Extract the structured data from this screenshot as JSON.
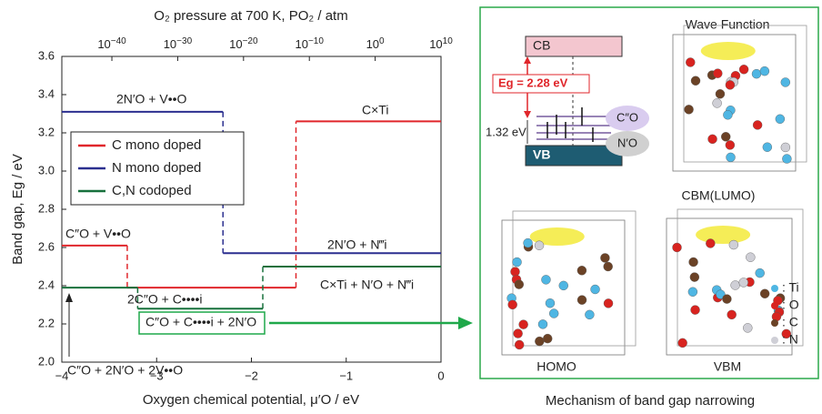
{
  "chart_data": {
    "type": "step",
    "title": "O₂ pressure at 700 K, PO₂ / atm",
    "x_label": "Oxygen chemical potential, μ′O / eV",
    "y_label": "Band gap, Eg / eV",
    "xlim": [
      -4,
      0
    ],
    "xticks": [
      {
        "value": -4,
        "label": "−4"
      },
      {
        "value": -3,
        "label": "−3"
      },
      {
        "value": -2,
        "label": "−2"
      },
      {
        "value": -1,
        "label": "−1"
      },
      0
    ],
    "ylim": [
      2.0,
      3.6
    ],
    "yticks": [
      {
        "value": 2.0,
        "label": "2.0"
      },
      2.2,
      2.4,
      2.6,
      2.8,
      {
        "value": 3.0,
        "label": "3.0"
      },
      3.2,
      3.4,
      3.6
    ],
    "x2lim": [
      2.5e-48,
      10000000000.0
    ],
    "x2log": true,
    "x2ticks": [
      {
        "value": 1e-40,
        "label": "10−40"
      },
      {
        "value": 1e-30,
        "label": "10−30"
      },
      {
        "value": 1e-20,
        "label": "10−20"
      },
      {
        "value": 1e-10,
        "label": "10−10"
      },
      {
        "value": 1,
        "label": "100"
      },
      {
        "value": 10000000000.0,
        "label": "1010"
      }
    ],
    "legend": "upper left",
    "series": [
      {
        "name": "C mono doped",
        "color": "#e0262b",
        "x": [
          -4,
          -3.31,
          -3.31,
          -1.53,
          -1.53,
          0
        ],
        "values": [
          2.61,
          2.61,
          2.39,
          2.39,
          3.26,
          3.26
        ]
      },
      {
        "name": "N mono doped",
        "color": "#2b2f8f",
        "x": [
          -4,
          -2.3,
          -2.3,
          0
        ],
        "values": [
          3.31,
          3.31,
          2.57,
          2.57
        ]
      },
      {
        "name": "C,N codoped",
        "color": "#17703c",
        "x": [
          -4,
          -3.2,
          -3.2,
          -1.88,
          -1.88,
          0
        ],
        "values": [
          2.39,
          2.39,
          2.28,
          2.28,
          2.5,
          2.5
        ]
      }
    ],
    "annotations": [
      "2N′O + V••O",
      "C×Ti",
      "C″O + V••O",
      "2C″O + C••••i",
      "2N′O + N‴i",
      "C×Ti + N′O + N‴i",
      "C″O + 2N′O + 2V••O",
      "C″O + C••••i + 2N′O"
    ]
  },
  "panel": {
    "cb": "CB",
    "vb": "VB",
    "gap": "Eg = 2.28 eV",
    "level": "1.32 eV",
    "c_level": "C″O",
    "n_level": "N′O",
    "views": [
      "Wave Function",
      "CBM(LUMO)",
      "HOMO",
      "VBM"
    ],
    "elements": [
      {
        "label": ": Ti",
        "color": "#4fb6e3"
      },
      {
        "label": ": O",
        "color": "#d8231f"
      },
      {
        "label": ": C",
        "color": "#6b4226"
      },
      {
        "label": ": N",
        "color": "#cfcfd6"
      }
    ],
    "caption": "Mechanism of band gap narrowing"
  }
}
